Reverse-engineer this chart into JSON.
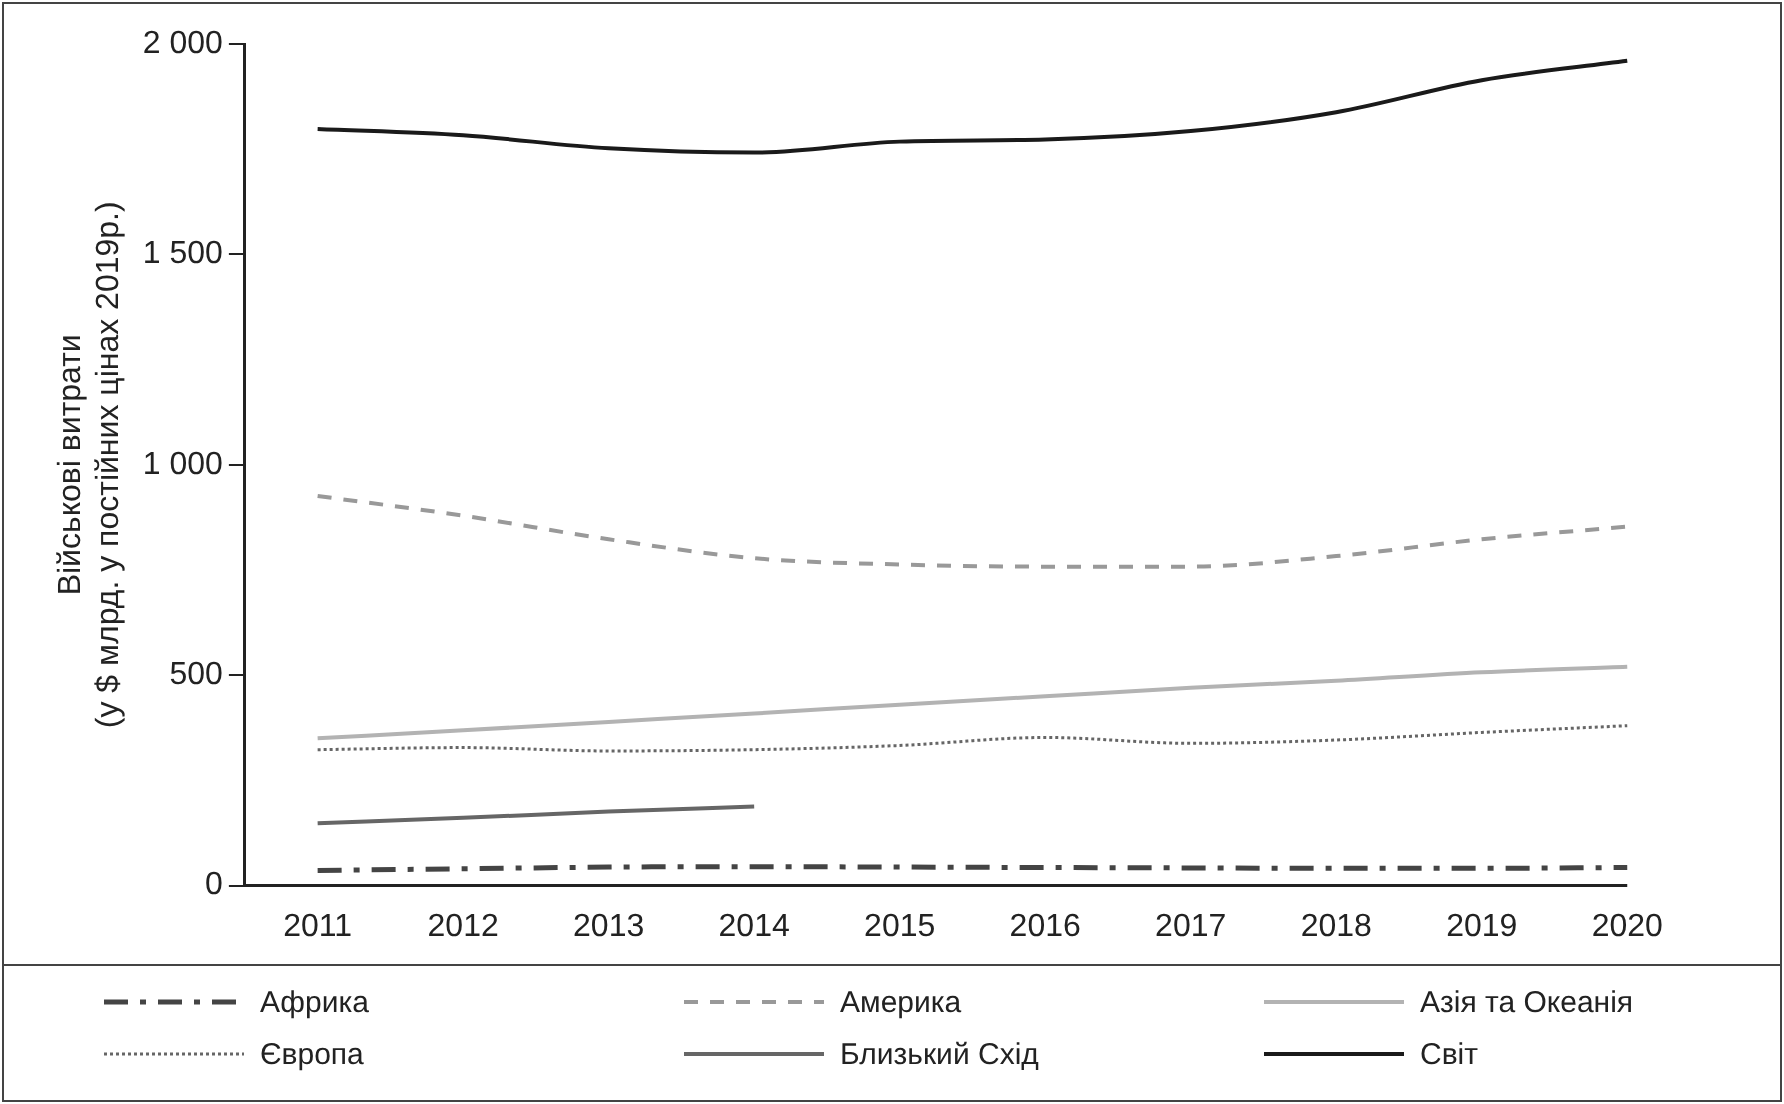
{
  "chart_data": {
    "type": "line",
    "ylabel": "Військові витрати\n(у $ млрд. у постійних цінах 2019р.)",
    "categories": [
      "2011",
      "2012",
      "2013",
      "2014",
      "2015",
      "2016",
      "2017",
      "2018",
      "2019",
      "2020"
    ],
    "series": [
      {
        "name": "Африка",
        "color": "#444444",
        "line_style": "dashdot",
        "values": [
          36,
          40,
          44,
          45,
          44,
          43,
          42,
          41,
          41,
          43
        ]
      },
      {
        "name": "Америка",
        "color": "#999999",
        "line_style": "dashed",
        "values": [
          926,
          879,
          823,
          778,
          763,
          758,
          758,
          783,
          823,
          853
        ]
      },
      {
        "name": "Азія та Океанія",
        "color": "#b3b3b3",
        "line_style": "solid",
        "values": [
          350,
          369,
          389,
          409,
          430,
          450,
          470,
          487,
          507,
          520
        ]
      },
      {
        "name": "Європа",
        "color": "#666666",
        "line_style": "dotted",
        "values": [
          323,
          328,
          320,
          323,
          333,
          352,
          338,
          346,
          364,
          380
        ]
      },
      {
        "name": "Близький Схід",
        "color": "#666666",
        "line_style": "solid",
        "values": [
          148,
          161,
          176,
          188,
          null,
          null,
          null,
          null,
          null,
          null
        ]
      },
      {
        "name": "Світ",
        "color": "#1a1a1a",
        "line_style": "solid",
        "values": [
          1798,
          1783,
          1752,
          1742,
          1768,
          1773,
          1793,
          1838,
          1914,
          1960
        ]
      }
    ],
    "ylim": [
      0,
      2000
    ],
    "yticks": [
      {
        "value": 0,
        "label": "0"
      },
      {
        "value": 500,
        "label": "500"
      },
      {
        "value": 1000,
        "label": "1 000"
      },
      {
        "value": 1500,
        "label": "1 500"
      },
      {
        "value": 2000,
        "label": "2 000"
      }
    ],
    "grid": false,
    "legend": "bottom",
    "marker": "none"
  }
}
